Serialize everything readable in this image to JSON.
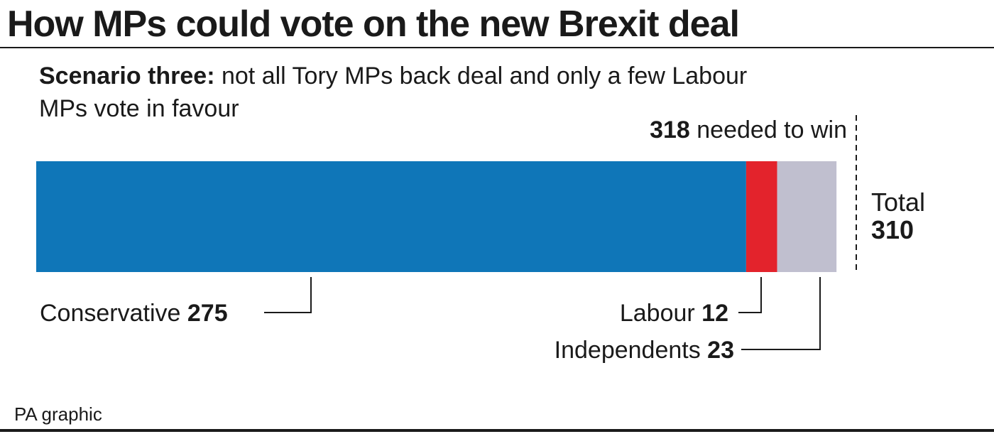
{
  "title": "How MPs could vote on the new Brexit deal",
  "subtitle": {
    "bold": "Scenario three:",
    "text": "not all Tory MPs back deal and only a few Labour MPs vote in favour"
  },
  "source": "PA graphic",
  "chart_data": {
    "type": "bar",
    "orientation": "horizontal",
    "stacked": true,
    "title": "How MPs could vote on the new Brexit deal",
    "series": [
      {
        "name": "Conservative",
        "value": 275,
        "color": "#0f76b8"
      },
      {
        "name": "Labour",
        "value": 12,
        "color": "#e3232c"
      },
      {
        "name": "Independents",
        "value": 23,
        "color": "#c0bfcf"
      }
    ],
    "total": {
      "label": "Total",
      "value": 310
    },
    "threshold": {
      "value": 318,
      "label": "needed to win"
    },
    "xlim": [
      0,
      318
    ],
    "grid": false
  }
}
